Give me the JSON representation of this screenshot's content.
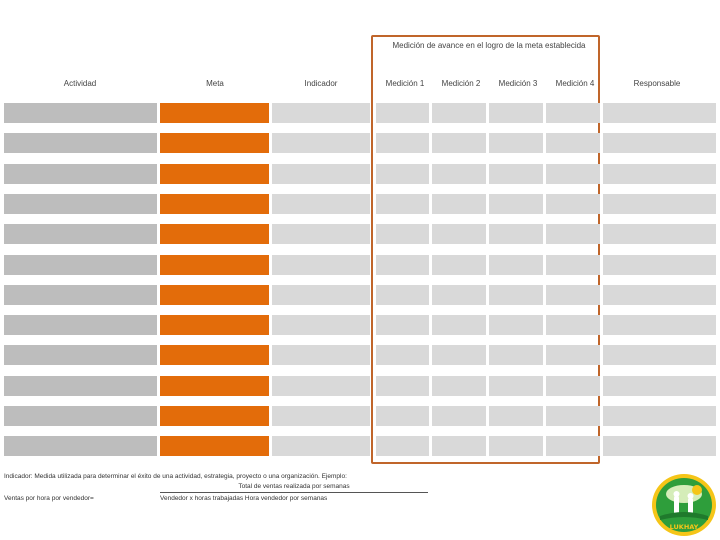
{
  "group_header": "Medición de avance en el logro de la meta establecida",
  "columns": [
    "Actividad",
    "Meta",
    "Indicador",
    "Medición 1",
    "Medición 2",
    "Medición 3",
    "Medición 4",
    "Responsable"
  ],
  "row_count": 12,
  "colors": {
    "actividad": "#bdbdbd",
    "meta": "#e36c0a",
    "light": "#d9d9d9",
    "frame": "#c0652a"
  },
  "footnote": {
    "definition": "Indicador: Medida utilizada para determinar el éxito de una actividad, estrategia, proyecto o una organización. Ejemplo:",
    "numerator": "Total de ventas realizada por semanas",
    "left_label": "Ventas por hora por vendedor=",
    "denominator": "Vendedor x horas trabajadas Hora vendedor por semanas"
  },
  "logo": {
    "text": "LUKHAY"
  }
}
